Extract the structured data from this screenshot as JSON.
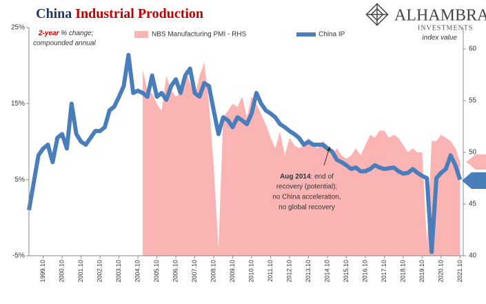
{
  "chart_data": {
    "type": "line",
    "title": [
      "China",
      "Industrial Production"
    ],
    "logo": {
      "name": "ALHAMBRA",
      "tagline": "INVESTMENTS"
    },
    "left_axis_note": {
      "emphasis": "2-year",
      "lines": [
        " % change;",
        "compounded annual"
      ]
    },
    "right_axis_note": "index value",
    "annotation": {
      "emphasis": "Aug 2014",
      "lines": [
        ": end of",
        "recovery (potential);",
        "no China acceleration,",
        "no global recovery"
      ]
    },
    "x": [
      "1999-01",
      "1999-04",
      "1999-07",
      "1999-10",
      "2000-01",
      "2000-04",
      "2000-07",
      "2000-10",
      "2001-01",
      "2001-04",
      "2001-07",
      "2001-10",
      "2002-01",
      "2002-04",
      "2002-07",
      "2002-10",
      "2003-01",
      "2003-04",
      "2003-07",
      "2003-10",
      "2004-01",
      "2004-04",
      "2004-07",
      "2004-10",
      "2005-01",
      "2005-04",
      "2005-07",
      "2005-10",
      "2006-01",
      "2006-04",
      "2006-07",
      "2006-10",
      "2007-01",
      "2007-04",
      "2007-07",
      "2007-10",
      "2008-01",
      "2008-04",
      "2008-07",
      "2008-10",
      "2009-01",
      "2009-04",
      "2009-07",
      "2009-10",
      "2010-01",
      "2010-04",
      "2010-07",
      "2010-10",
      "2011-01",
      "2011-04",
      "2011-07",
      "2011-10",
      "2012-01",
      "2012-04",
      "2012-07",
      "2012-10",
      "2013-01",
      "2013-04",
      "2013-07",
      "2013-10",
      "2014-01",
      "2014-04",
      "2014-07",
      "2014-10",
      "2015-01",
      "2015-04",
      "2015-07",
      "2015-10",
      "2016-01",
      "2016-04",
      "2016-07",
      "2016-10",
      "2017-01",
      "2017-04",
      "2017-07",
      "2017-10",
      "2018-01",
      "2018-04",
      "2018-07",
      "2018-10",
      "2019-01",
      "2019-04",
      "2019-07",
      "2019-10",
      "2020-01",
      "2020-04",
      "2020-07",
      "2020-10",
      "2021-01",
      "2021-04",
      "2021-07",
      "2021-10"
    ],
    "series": [
      {
        "name": "NBS Manufacturing PMI - RHS",
        "type": "area",
        "axis": "y2",
        "color": "#fbb4b4",
        "values": [
          null,
          null,
          null,
          null,
          null,
          null,
          null,
          null,
          null,
          null,
          null,
          null,
          null,
          null,
          null,
          null,
          null,
          null,
          null,
          null,
          null,
          null,
          null,
          null,
          58,
          56,
          55.7,
          54.7,
          54,
          57.4,
          56,
          55.4,
          55.7,
          58,
          56.7,
          55.4,
          57.4,
          58.7,
          54.7,
          48.7,
          40.7,
          53.4,
          54,
          54.7,
          54.4,
          55.4,
          53.4,
          55.4,
          54.7,
          53.7,
          52.7,
          51.4,
          50.4,
          52,
          49.7,
          51.4,
          50.7,
          50.4,
          50.7,
          51.4,
          50.7,
          50.4,
          51.1,
          50.7,
          49.7,
          50.4,
          49.7,
          49.4,
          49.7,
          50.4,
          49.7,
          50.7,
          51.7,
          51.4,
          52.1,
          52.1,
          51.4,
          51.7,
          51.4,
          50.7,
          50,
          50.4,
          50,
          50,
          41,
          51.1,
          51.1,
          51.7,
          51.4,
          51.1,
          50.4,
          49.1
        ]
      },
      {
        "name": "China IP",
        "type": "line",
        "color": "#4a7ebb",
        "values": [
          1,
          4.6,
          8.2,
          9.1,
          9.6,
          7.3,
          10.5,
          11,
          9.1,
          15,
          11,
          10,
          9.6,
          10.5,
          11.4,
          11.4,
          11.9,
          14.1,
          14.6,
          15.9,
          17.3,
          21.4,
          16.4,
          16.7,
          16.4,
          15.9,
          18.7,
          15.9,
          16.4,
          15.5,
          17.3,
          18.2,
          16.4,
          18.7,
          19.6,
          16.4,
          15.9,
          17.7,
          17.3,
          14.1,
          11,
          13.2,
          12.8,
          11.9,
          13.2,
          12.8,
          12.3,
          13.7,
          16.4,
          15,
          14.1,
          13.7,
          13.2,
          12.3,
          11.9,
          11.4,
          11,
          10.5,
          9.6,
          10,
          9.6,
          9.6,
          9.6,
          9.1,
          8.7,
          7.6,
          7.3,
          6.9,
          6.4,
          6.6,
          6.1,
          6.1,
          6.4,
          6.9,
          6.6,
          6.4,
          6.5,
          6.6,
          6.1,
          5.8,
          5.9,
          6.4,
          5.9,
          5.5,
          5.2,
          -4.5,
          5.2,
          5.9,
          6.4,
          8.2,
          6.9,
          5.0
        ]
      }
    ],
    "xlim": [
      "1999-01",
      "2021-12"
    ],
    "xticks": [
      {
        "value": "1999-10",
        "label": "1999.10"
      },
      {
        "value": "2000-10",
        "label": "2000.10"
      },
      {
        "value": "2001-10",
        "label": "2001.10"
      },
      {
        "value": "2002-10",
        "label": "2002.10"
      },
      {
        "value": "2003-10",
        "label": "2003.10"
      },
      {
        "value": "2004-10",
        "label": "2004.10"
      },
      {
        "value": "2005-10",
        "label": "2005.10"
      },
      {
        "value": "2006-10",
        "label": "2006.10"
      },
      {
        "value": "2007-10",
        "label": "2007.10"
      },
      {
        "value": "2008-10",
        "label": "2008.10"
      },
      {
        "value": "2009-10",
        "label": "2009.10"
      },
      {
        "value": "2010-10",
        "label": "2010.10"
      },
      {
        "value": "2011-10",
        "label": "2011.10"
      },
      {
        "value": "2012-10",
        "label": "2012.10"
      },
      {
        "value": "2013-10",
        "label": "2013.10"
      },
      {
        "value": "2014-10",
        "label": "2014.10"
      },
      {
        "value": "2015-10",
        "label": "2015.10"
      },
      {
        "value": "2016-10",
        "label": "2016.10"
      },
      {
        "value": "2017-10",
        "label": "2017.10"
      },
      {
        "value": "2018-10",
        "label": "2018.10"
      },
      {
        "value": "2019-10",
        "label": "2019.10"
      },
      {
        "value": "2020-10",
        "label": "2020.10"
      },
      {
        "value": "2021-10",
        "label": "2021.10"
      }
    ],
    "ylim": [
      -5,
      25
    ],
    "yticks": [
      {
        "value": -5,
        "label": "-5%"
      },
      {
        "value": 5,
        "label": "5%"
      },
      {
        "value": 15,
        "label": "15%"
      },
      {
        "value": 25,
        "label": "25%"
      }
    ],
    "y2lim": [
      40,
      62.07
    ],
    "y2ticks": [
      40,
      45,
      50,
      55,
      60
    ],
    "grid": false
  }
}
